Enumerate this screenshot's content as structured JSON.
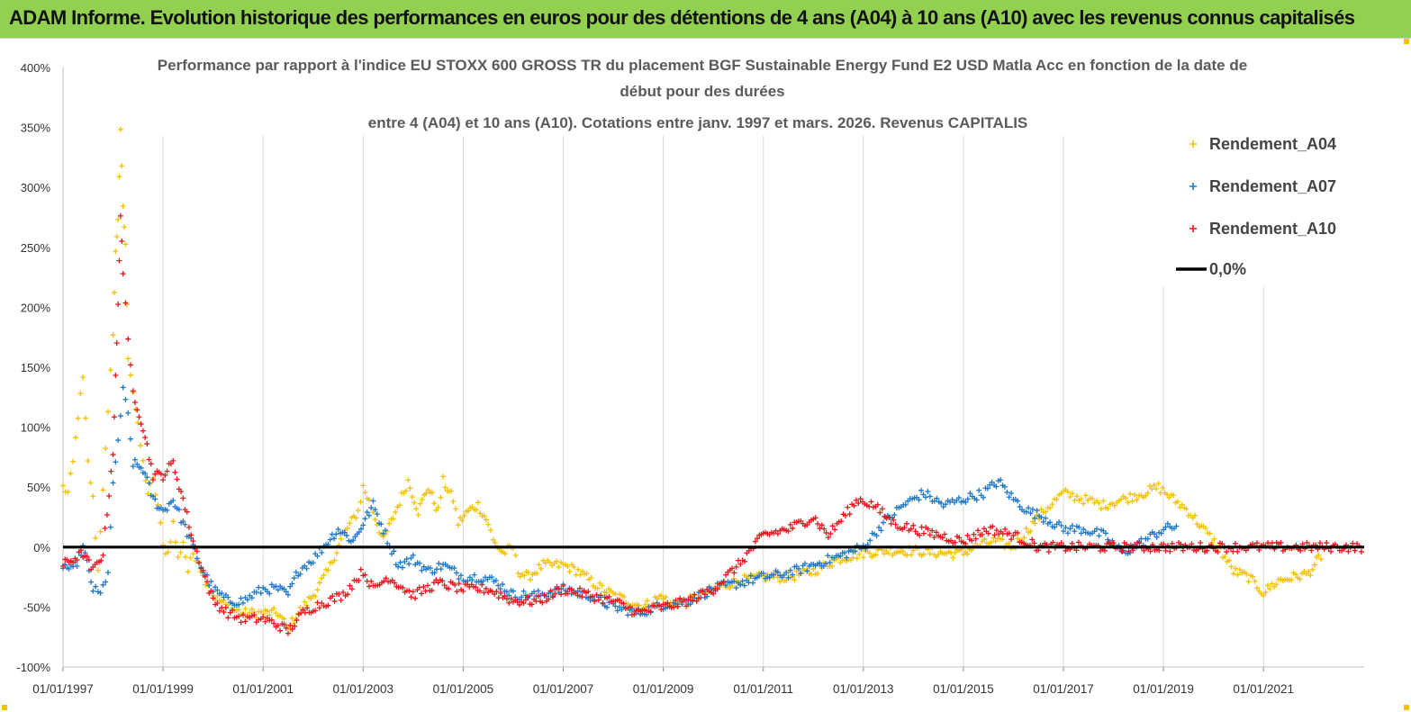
{
  "banner": {
    "title": "ADAM Informe. Evolution historique des performances en euros pour des détentions de 4 ans (A04) à 10 ans (A10) avec les revenus connus capitalisés",
    "background": "#92d050"
  },
  "chart_data": {
    "type": "scatter",
    "title_lines": [
      "Performance par rapport à l'indice EU STOXX 600 GROSS TR  du placement BGF Sustainable Energy Fund E2 USD Matla Acc en fonction de la date de",
      "début pour des durées",
      "entre 4 (A04) et 10 ans (A10). Cotations entre janv. 1997 et mars. 2026. Revenus CAPITALIS"
    ],
    "y_ticks": [
      "400%",
      "350%",
      "300%",
      "250%",
      "200%",
      "150%",
      "100%",
      "50%",
      "0%",
      "-50%",
      "-100%"
    ],
    "x_ticks": [
      "01/01/1997",
      "01/01/1999",
      "01/01/2001",
      "01/01/2003",
      "01/01/2005",
      "01/01/2007",
      "01/01/2009",
      "01/01/2011",
      "01/01/2013",
      "01/01/2015",
      "01/01/2017",
      "01/01/2019",
      "01/01/2021"
    ],
    "ylim": [
      -100,
      400
    ],
    "xlim": [
      1997.0,
      2023.1
    ],
    "grid_vertical": true,
    "legend_position": "top-right",
    "legend": [
      {
        "label": "Rendement_A04",
        "marker": "+",
        "color": "#f5c000"
      },
      {
        "label": "Rendement_A07",
        "marker": "+",
        "color": "#1f78c8"
      },
      {
        "label": "Rendement_A10",
        "marker": "+",
        "color": "#e8141b"
      },
      {
        "label": "0,0%",
        "marker": "line",
        "color": "#000000"
      }
    ],
    "series": [
      {
        "name": "Rendement_A04",
        "color": "#f5c000",
        "points": [
          [
            1997.0,
            50
          ],
          [
            1997.1,
            45
          ],
          [
            1997.2,
            70
          ],
          [
            1997.3,
            110
          ],
          [
            1997.4,
            140
          ],
          [
            1997.5,
            70
          ],
          [
            1997.6,
            40
          ],
          [
            1997.7,
            -20
          ],
          [
            1997.8,
            50
          ],
          [
            1997.9,
            110
          ],
          [
            1998.0,
            180
          ],
          [
            1998.05,
            245
          ],
          [
            1998.1,
            275
          ],
          [
            1998.15,
            345
          ],
          [
            1998.2,
            285
          ],
          [
            1998.25,
            250
          ],
          [
            1998.3,
            160
          ],
          [
            1998.4,
            130
          ],
          [
            1998.5,
            100
          ],
          [
            1998.6,
            70
          ],
          [
            1998.7,
            45
          ],
          [
            1998.8,
            55
          ],
          [
            1998.9,
            35
          ],
          [
            1999.0,
            0
          ],
          [
            1999.1,
            -5
          ],
          [
            1999.2,
            20
          ],
          [
            1999.3,
            -10
          ],
          [
            1999.4,
            5
          ],
          [
            1999.5,
            -20
          ],
          [
            1999.6,
            -5
          ],
          [
            1999.7,
            -10
          ],
          [
            1999.8,
            -25
          ],
          [
            1999.9,
            -30
          ],
          [
            2000.0,
            -40
          ],
          [
            2000.3,
            -50
          ],
          [
            2000.6,
            -55
          ],
          [
            2001.0,
            -55
          ],
          [
            2001.3,
            -55
          ],
          [
            2001.5,
            -68
          ],
          [
            2001.7,
            -55
          ],
          [
            2002.0,
            -40
          ],
          [
            2002.3,
            -20
          ],
          [
            2002.6,
            10
          ],
          [
            2002.9,
            30
          ],
          [
            2003.0,
            50
          ],
          [
            2003.2,
            30
          ],
          [
            2003.4,
            5
          ],
          [
            2003.6,
            25
          ],
          [
            2003.9,
            55
          ],
          [
            2004.1,
            30
          ],
          [
            2004.3,
            50
          ],
          [
            2004.5,
            30
          ],
          [
            2004.6,
            55
          ],
          [
            2004.8,
            40
          ],
          [
            2004.9,
            20
          ],
          [
            2005.1,
            30
          ],
          [
            2005.3,
            35
          ],
          [
            2005.5,
            20
          ],
          [
            2005.6,
            5
          ],
          [
            2005.8,
            -5
          ],
          [
            2006.0,
            0
          ],
          [
            2006.1,
            -20
          ],
          [
            2006.3,
            -25
          ],
          [
            2006.6,
            -15
          ],
          [
            2007.0,
            -15
          ],
          [
            2007.3,
            -20
          ],
          [
            2007.6,
            -30
          ],
          [
            2008.0,
            -40
          ],
          [
            2008.3,
            -45
          ],
          [
            2008.6,
            -50
          ],
          [
            2008.8,
            -45
          ],
          [
            2009.0,
            -40
          ],
          [
            2009.1,
            -48
          ],
          [
            2009.5,
            -45
          ],
          [
            2010.0,
            -35
          ],
          [
            2010.5,
            -28
          ],
          [
            2011.0,
            -25
          ],
          [
            2011.5,
            -25
          ],
          [
            2012.0,
            -20
          ],
          [
            2012.5,
            -10
          ],
          [
            2013.0,
            -5
          ],
          [
            2013.5,
            -3
          ],
          [
            2014.0,
            -3
          ],
          [
            2014.5,
            -5
          ],
          [
            2015.0,
            -5
          ],
          [
            2015.2,
            0
          ],
          [
            2015.6,
            5
          ],
          [
            2016.0,
            0
          ],
          [
            2016.3,
            15
          ],
          [
            2016.6,
            30
          ],
          [
            2017.0,
            45
          ],
          [
            2017.4,
            40
          ],
          [
            2017.8,
            35
          ],
          [
            2018.2,
            40
          ],
          [
            2018.6,
            45
          ],
          [
            2018.9,
            50
          ],
          [
            2019.2,
            40
          ],
          [
            2019.5,
            30
          ],
          [
            2019.8,
            15
          ],
          [
            2020.1,
            0
          ],
          [
            2020.4,
            -20
          ],
          [
            2020.7,
            -25
          ],
          [
            2021.0,
            -38
          ],
          [
            2021.3,
            -28
          ],
          [
            2021.6,
            -25
          ],
          [
            2021.9,
            -22
          ],
          [
            2022.1,
            -10
          ],
          [
            2022.2,
            -15
          ]
        ]
      },
      {
        "name": "Rendement_A07",
        "color": "#1f78c8",
        "points": [
          [
            1997.0,
            -15
          ],
          [
            1997.2,
            -20
          ],
          [
            1997.4,
            0
          ],
          [
            1997.6,
            -35
          ],
          [
            1997.75,
            -40
          ],
          [
            1997.9,
            -20
          ],
          [
            1998.0,
            50
          ],
          [
            1998.1,
            90
          ],
          [
            1998.2,
            130
          ],
          [
            1998.3,
            110
          ],
          [
            1998.4,
            70
          ],
          [
            1998.6,
            65
          ],
          [
            1998.8,
            40
          ],
          [
            1999.0,
            30
          ],
          [
            1999.2,
            40
          ],
          [
            1999.4,
            20
          ],
          [
            1999.6,
            0
          ],
          [
            1999.8,
            -20
          ],
          [
            2000.0,
            -35
          ],
          [
            2000.3,
            -45
          ],
          [
            2000.6,
            -45
          ],
          [
            2001.0,
            -35
          ],
          [
            2001.3,
            -35
          ],
          [
            2001.5,
            -40
          ],
          [
            2001.7,
            -20
          ],
          [
            2002.0,
            -10
          ],
          [
            2002.3,
            5
          ],
          [
            2002.5,
            15
          ],
          [
            2002.8,
            5
          ],
          [
            2003.0,
            20
          ],
          [
            2003.2,
            35
          ],
          [
            2003.4,
            15
          ],
          [
            2003.7,
            -15
          ],
          [
            2004.0,
            -10
          ],
          [
            2004.3,
            -20
          ],
          [
            2004.6,
            -15
          ],
          [
            2005.0,
            -25
          ],
          [
            2005.4,
            -25
          ],
          [
            2005.7,
            -30
          ],
          [
            2006.0,
            -40
          ],
          [
            2006.5,
            -40
          ],
          [
            2007.0,
            -35
          ],
          [
            2007.5,
            -40
          ],
          [
            2008.0,
            -50
          ],
          [
            2008.5,
            -55
          ],
          [
            2009.0,
            -48
          ],
          [
            2009.5,
            -45
          ],
          [
            2010.0,
            -35
          ],
          [
            2010.5,
            -30
          ],
          [
            2011.0,
            -25
          ],
          [
            2011.5,
            -22
          ],
          [
            2012.0,
            -15
          ],
          [
            2012.5,
            -8
          ],
          [
            2013.0,
            0
          ],
          [
            2013.4,
            20
          ],
          [
            2013.8,
            35
          ],
          [
            2014.2,
            45
          ],
          [
            2014.6,
            35
          ],
          [
            2015.0,
            40
          ],
          [
            2015.4,
            45
          ],
          [
            2015.7,
            55
          ],
          [
            2016.0,
            40
          ],
          [
            2016.3,
            30
          ],
          [
            2016.6,
            25
          ],
          [
            2017.0,
            15
          ],
          [
            2017.4,
            15
          ],
          [
            2017.8,
            10
          ],
          [
            2018.2,
            -5
          ],
          [
            2018.6,
            5
          ],
          [
            2019.0,
            15
          ],
          [
            2019.3,
            18
          ]
        ]
      },
      {
        "name": "Rendement_A10",
        "color": "#e8141b",
        "points": [
          [
            1997.0,
            -15
          ],
          [
            1997.2,
            -10
          ],
          [
            1997.4,
            -5
          ],
          [
            1997.6,
            -20
          ],
          [
            1997.8,
            -5
          ],
          [
            1998.0,
            80
          ],
          [
            1998.05,
            140
          ],
          [
            1998.1,
            200
          ],
          [
            1998.15,
            280
          ],
          [
            1998.2,
            230
          ],
          [
            1998.3,
            170
          ],
          [
            1998.4,
            130
          ],
          [
            1998.6,
            100
          ],
          [
            1998.8,
            60
          ],
          [
            1999.0,
            60
          ],
          [
            1999.2,
            70
          ],
          [
            1999.4,
            40
          ],
          [
            1999.6,
            5
          ],
          [
            1999.8,
            -20
          ],
          [
            2000.0,
            -45
          ],
          [
            2000.3,
            -55
          ],
          [
            2000.6,
            -60
          ],
          [
            2001.0,
            -60
          ],
          [
            2001.3,
            -65
          ],
          [
            2001.5,
            -70
          ],
          [
            2001.8,
            -55
          ],
          [
            2002.0,
            -50
          ],
          [
            2002.3,
            -45
          ],
          [
            2002.6,
            -40
          ],
          [
            2003.0,
            -20
          ],
          [
            2003.2,
            -35
          ],
          [
            2003.5,
            -25
          ],
          [
            2004.0,
            -40
          ],
          [
            2004.5,
            -30
          ],
          [
            2005.0,
            -35
          ],
          [
            2005.5,
            -35
          ],
          [
            2006.0,
            -45
          ],
          [
            2006.5,
            -45
          ],
          [
            2007.0,
            -35
          ],
          [
            2007.5,
            -40
          ],
          [
            2008.0,
            -45
          ],
          [
            2008.5,
            -55
          ],
          [
            2009.0,
            -50
          ],
          [
            2009.5,
            -45
          ],
          [
            2010.0,
            -35
          ],
          [
            2010.5,
            -15
          ],
          [
            2010.8,
            0
          ],
          [
            2011.0,
            10
          ],
          [
            2011.5,
            15
          ],
          [
            2012.0,
            25
          ],
          [
            2012.3,
            10
          ],
          [
            2012.6,
            25
          ],
          [
            2012.9,
            40
          ],
          [
            2013.2,
            35
          ],
          [
            2013.6,
            20
          ],
          [
            2014.0,
            15
          ],
          [
            2014.5,
            10
          ],
          [
            2015.0,
            5
          ],
          [
            2015.5,
            15
          ],
          [
            2016.0,
            10
          ],
          [
            2016.5,
            0
          ],
          [
            2017.0,
            0
          ],
          [
            2018.0,
            0
          ],
          [
            2019.0,
            0
          ],
          [
            2020.0,
            0
          ],
          [
            2021.0,
            0
          ],
          [
            2022.0,
            0
          ],
          [
            2023.0,
            0
          ]
        ]
      }
    ]
  }
}
